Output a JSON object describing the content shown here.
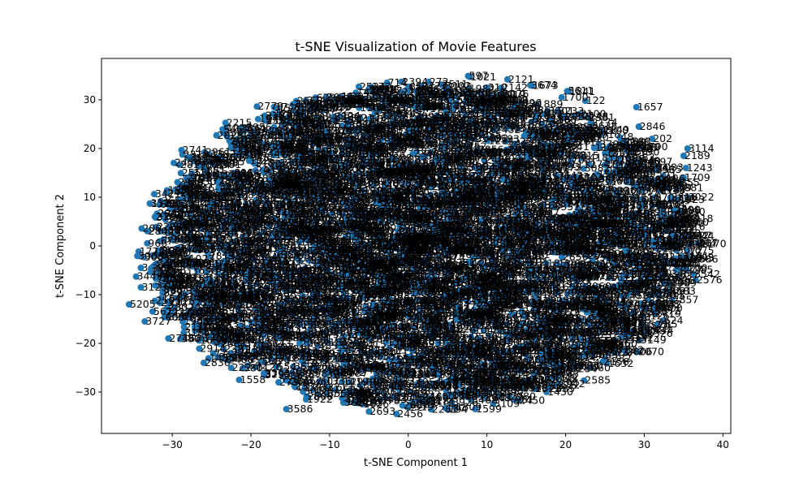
{
  "chart_data": {
    "type": "scatter",
    "title": "t-SNE Visualization of Movie Features",
    "xlabel": "t-SNE Component 1",
    "ylabel": "t-SNE Component 2",
    "xlim": [
      -39,
      41
    ],
    "ylim": [
      -38.5,
      38.5
    ],
    "xticks": [
      -30,
      -20,
      -10,
      0,
      10,
      20,
      30,
      40
    ],
    "yticks": [
      -30,
      -20,
      -10,
      0,
      10,
      20,
      30
    ],
    "xtick_labels": [
      "−30",
      "−20",
      "−10",
      "0",
      "10",
      "20",
      "30",
      "40"
    ],
    "ytick_labels": [
      "−30",
      "−20",
      "−10",
      "0",
      "10",
      "20",
      "30"
    ],
    "marker_color": "#1f77b4",
    "grid": false,
    "point_count_estimate": 3900,
    "labeled_points": [
      {
        "x": 7.6,
        "y": 34.9,
        "label": "597"
      },
      {
        "x": 7.8,
        "y": 34.7,
        "label": "1021"
      },
      {
        "x": 12.6,
        "y": 34.2,
        "label": "2121"
      },
      {
        "x": -5.0,
        "y": 32.2,
        "label": "1631"
      },
      {
        "x": -4.8,
        "y": 32.1,
        "label": "3048"
      },
      {
        "x": -4.5,
        "y": 32.0,
        "label": "1848"
      },
      {
        "x": 4.6,
        "y": 32.8,
        "label": "3102"
      },
      {
        "x": 4.8,
        "y": 32.6,
        "label": "3185"
      },
      {
        "x": 15.5,
        "y": 33.0,
        "label": "3674"
      },
      {
        "x": 15.7,
        "y": 32.9,
        "label": "1673"
      },
      {
        "x": 20.2,
        "y": 31.8,
        "label": "5611"
      },
      {
        "x": 20.4,
        "y": 31.7,
        "label": "1841"
      },
      {
        "x": 10.0,
        "y": 32.5,
        "label": "310"
      },
      {
        "x": -7.5,
        "y": 30.0,
        "label": "3134"
      },
      {
        "x": -3.0,
        "y": 29.5,
        "label": "1967"
      },
      {
        "x": 22.5,
        "y": 29.8,
        "label": "122"
      },
      {
        "x": 29.0,
        "y": 28.5,
        "label": "1657"
      },
      {
        "x": 29.3,
        "y": 24.5,
        "label": "2846"
      },
      {
        "x": 31.0,
        "y": 22.0,
        "label": "202"
      },
      {
        "x": 35.5,
        "y": 20.0,
        "label": "3114"
      },
      {
        "x": 35.0,
        "y": 18.5,
        "label": "2189"
      },
      {
        "x": 35.3,
        "y": 16.0,
        "label": "1243"
      },
      {
        "x": 35.0,
        "y": 14.0,
        "label": "1709"
      },
      {
        "x": 34.5,
        "y": 13.0,
        "label": "355"
      },
      {
        "x": 35.5,
        "y": 10.0,
        "label": "3022"
      },
      {
        "x": 35.5,
        "y": 2.0,
        "label": "2344"
      },
      {
        "x": 35.5,
        "y": -1.0,
        "label": "1075"
      },
      {
        "x": 35.5,
        "y": -2.5,
        "label": "1093"
      },
      {
        "x": 32.0,
        "y": -4.0,
        "label": "1764"
      },
      {
        "x": 31.0,
        "y": -6.5,
        "label": "1423"
      },
      {
        "x": 29.0,
        "y": -9.0,
        "label": "1257"
      },
      {
        "x": 27.0,
        "y": -12.0,
        "label": "3840"
      },
      {
        "x": 25.5,
        "y": -15.0,
        "label": "2572"
      },
      {
        "x": 23.0,
        "y": -17.5,
        "label": "2010"
      },
      {
        "x": 23.0,
        "y": -20.0,
        "label": "3896"
      },
      {
        "x": 20.5,
        "y": -23.0,
        "label": "2414"
      },
      {
        "x": 18.5,
        "y": -22.5,
        "label": "1562"
      },
      {
        "x": 18.5,
        "y": -24.5,
        "label": "1505"
      },
      {
        "x": 15.5,
        "y": -27.5,
        "label": "3302"
      },
      {
        "x": 12.0,
        "y": -28.5,
        "label": "2566"
      },
      {
        "x": 9.0,
        "y": -30.5,
        "label": "3918"
      },
      {
        "x": 8.5,
        "y": -33.5,
        "label": "1599"
      },
      {
        "x": 2.5,
        "y": -32.0,
        "label": "1474"
      },
      {
        "x": -1.5,
        "y": -34.5,
        "label": "2456"
      },
      {
        "x": -5.0,
        "y": -34.0,
        "label": "2693"
      },
      {
        "x": -8.0,
        "y": -32.0,
        "label": "1448"
      },
      {
        "x": -13.0,
        "y": -31.5,
        "label": "1922"
      },
      {
        "x": -15.5,
        "y": -33.5,
        "label": "3586"
      },
      {
        "x": -21.5,
        "y": -27.5,
        "label": "1558"
      },
      {
        "x": -26.0,
        "y": -24.0,
        "label": "2836"
      },
      {
        "x": -30.5,
        "y": -19.0,
        "label": "2746"
      },
      {
        "x": -33.5,
        "y": -15.5,
        "label": "3727"
      },
      {
        "x": -35.5,
        "y": -12.0,
        "label": "5205"
      },
      {
        "x": -34.0,
        "y": -8.5,
        "label": "3123"
      },
      {
        "x": -34.0,
        "y": -4.5,
        "label": "3"
      },
      {
        "x": -29.0,
        "y": 6.0,
        "label": "2561"
      },
      {
        "x": -30.5,
        "y": 8.5,
        "label": "2671"
      },
      {
        "x": -26.0,
        "y": 10.0,
        "label": "1880"
      },
      {
        "x": -27.5,
        "y": 14.0,
        "label": "1069"
      },
      {
        "x": -24.5,
        "y": 17.0,
        "label": "269"
      },
      {
        "x": -21.0,
        "y": 20.5,
        "label": "2680"
      },
      {
        "x": -17.5,
        "y": 23.5,
        "label": "2191"
      },
      {
        "x": -13.5,
        "y": 26.0,
        "label": "3079"
      },
      {
        "x": 1.5,
        "y": 30.5,
        "label": "3863"
      },
      {
        "x": 19.5,
        "y": 30.5,
        "label": "1700"
      }
    ]
  }
}
